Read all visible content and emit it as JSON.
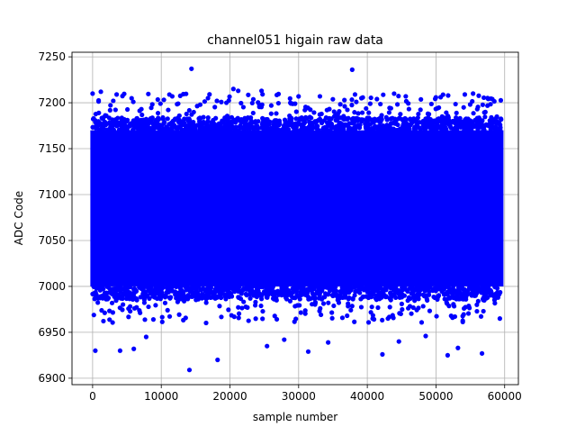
{
  "chart_data": {
    "type": "scatter",
    "title": "channel051 higain raw data",
    "xlabel": "sample number",
    "ylabel": "ADC Code",
    "xlim": [
      -3000,
      62000
    ],
    "ylim": [
      6893,
      7255
    ],
    "x_ticks": [
      0,
      10000,
      20000,
      30000,
      40000,
      50000,
      60000
    ],
    "y_ticks": [
      6900,
      6950,
      7000,
      7050,
      7100,
      7150,
      7200,
      7250
    ],
    "grid": true,
    "marker_color": "#0000ff",
    "x_range": [
      0,
      59500
    ],
    "dense_band": [
      7000,
      7170
    ],
    "series": [
      {
        "name": "",
        "outliers": [
          {
            "x": 14400,
            "y": 7237
          },
          {
            "x": 37800,
            "y": 7236
          },
          {
            "x": 14100,
            "y": 6909
          },
          {
            "x": 18200,
            "y": 6920
          },
          {
            "x": 42200,
            "y": 6926
          },
          {
            "x": 51700,
            "y": 6925
          },
          {
            "x": 56700,
            "y": 6927
          },
          {
            "x": 31400,
            "y": 6929
          },
          {
            "x": 400,
            "y": 6930
          },
          {
            "x": 4000,
            "y": 6930
          },
          {
            "x": 20500,
            "y": 7215
          },
          {
            "x": 21200,
            "y": 7213
          },
          {
            "x": 24600,
            "y": 7213
          },
          {
            "x": 1200,
            "y": 7212
          },
          {
            "x": 0,
            "y": 7210
          },
          {
            "x": 3500,
            "y": 7209
          },
          {
            "x": 54200,
            "y": 7209
          },
          {
            "x": 55400,
            "y": 7210
          },
          {
            "x": 33100,
            "y": 7207
          },
          {
            "x": 11600,
            "y": 7207
          },
          {
            "x": 16800,
            "y": 7205
          },
          {
            "x": 41400,
            "y": 7204
          },
          {
            "x": 45600,
            "y": 7207
          },
          {
            "x": 7800,
            "y": 6945
          },
          {
            "x": 6000,
            "y": 6932
          },
          {
            "x": 25400,
            "y": 6935
          },
          {
            "x": 34300,
            "y": 6939
          },
          {
            "x": 44600,
            "y": 6940
          },
          {
            "x": 53200,
            "y": 6933
          },
          {
            "x": 27900,
            "y": 6942
          },
          {
            "x": 48500,
            "y": 6946
          },
          {
            "x": 59300,
            "y": 6965
          }
        ]
      }
    ]
  }
}
